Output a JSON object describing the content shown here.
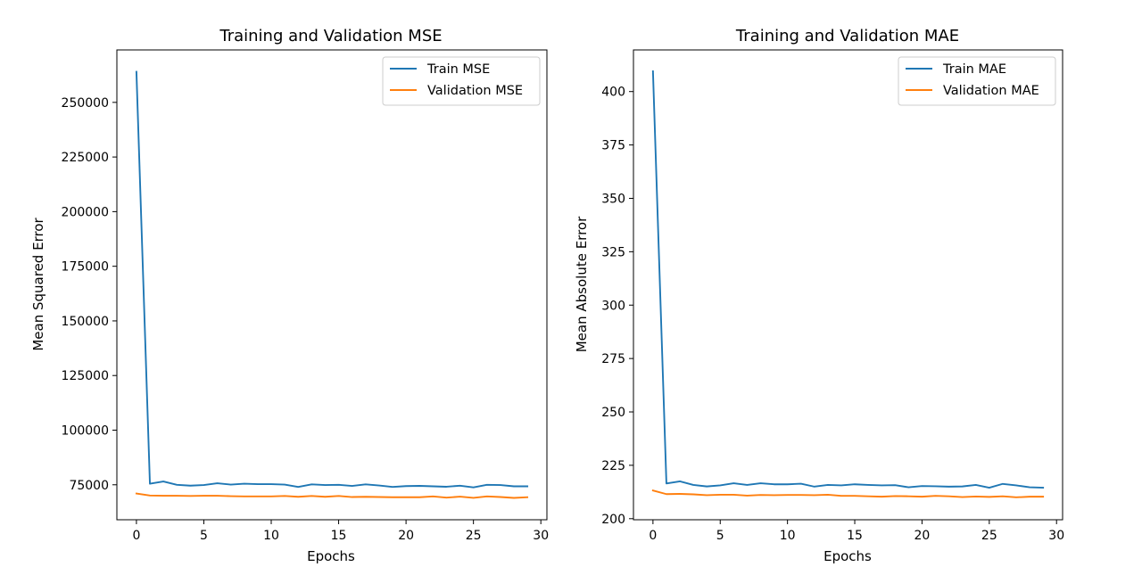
{
  "chart_data": [
    {
      "type": "line",
      "title": "Training and Validation MSE",
      "xlabel": "Epochs",
      "ylabel": "Mean Squared Error",
      "xlim": [
        -1.45,
        30.45
      ],
      "ylim": [
        59000,
        274000
      ],
      "xticks": [
        0,
        5,
        10,
        15,
        20,
        25,
        30
      ],
      "yticks": [
        75000,
        100000,
        125000,
        150000,
        175000,
        200000,
        225000,
        250000
      ],
      "ytick_labels": [
        "75000",
        "100000",
        "125000",
        "150000",
        "175000",
        "200000",
        "225000",
        "250000"
      ],
      "grid": false,
      "legend_position": "top-right",
      "x": [
        0,
        1,
        2,
        3,
        4,
        5,
        6,
        7,
        8,
        9,
        10,
        11,
        12,
        13,
        14,
        15,
        16,
        17,
        18,
        19,
        20,
        21,
        22,
        23,
        24,
        25,
        26,
        27,
        28,
        29
      ],
      "series": [
        {
          "name": "Train MSE",
          "color": "#1f77b4",
          "values": [
            264000,
            75500,
            76500,
            75000,
            74600,
            74900,
            75700,
            75100,
            75500,
            75300,
            75300,
            75100,
            74000,
            75200,
            74900,
            75000,
            74500,
            75200,
            74700,
            74000,
            74400,
            74500,
            74300,
            74100,
            74600,
            73800,
            75000,
            74900,
            74300,
            74300
          ]
        },
        {
          "name": "Validation MSE",
          "color": "#ff7f0e",
          "values": [
            71000,
            70100,
            70000,
            70000,
            69900,
            70000,
            70000,
            69800,
            69700,
            69700,
            69700,
            69900,
            69500,
            69900,
            69500,
            69900,
            69400,
            69500,
            69400,
            69300,
            69300,
            69300,
            69700,
            69100,
            69600,
            69000,
            69700,
            69400,
            69000,
            69300
          ]
        }
      ]
    },
    {
      "type": "line",
      "title": "Training and Validation MAE",
      "xlabel": "Epochs",
      "ylabel": "Mean Absolute Error",
      "xlim": [
        -1.45,
        30.45
      ],
      "ylim": [
        199.5,
        419.5
      ],
      "xticks": [
        0,
        5,
        10,
        15,
        20,
        25,
        30
      ],
      "yticks": [
        200,
        225,
        250,
        275,
        300,
        325,
        350,
        375,
        400
      ],
      "ytick_labels": [
        "200",
        "225",
        "250",
        "275",
        "300",
        "325",
        "350",
        "375",
        "400"
      ],
      "grid": false,
      "legend_position": "top-right",
      "x": [
        0,
        1,
        2,
        3,
        4,
        5,
        6,
        7,
        8,
        9,
        10,
        11,
        12,
        13,
        14,
        15,
        16,
        17,
        18,
        19,
        20,
        21,
        22,
        23,
        24,
        25,
        26,
        27,
        28,
        29
      ],
      "series": [
        {
          "name": "Train MAE",
          "color": "#1f77b4",
          "values": [
            409.5,
            216.5,
            217.5,
            215.8,
            215.1,
            215.6,
            216.6,
            215.8,
            216.6,
            216.1,
            216.1,
            216.4,
            215.0,
            215.8,
            215.6,
            216.1,
            215.8,
            215.6,
            215.7,
            214.7,
            215.3,
            215.2,
            215.0,
            215.1,
            215.8,
            214.5,
            216.3,
            215.6,
            214.7,
            214.5
          ]
        },
        {
          "name": "Validation MAE",
          "color": "#ff7f0e",
          "values": [
            213.2,
            211.5,
            211.6,
            211.4,
            211.0,
            211.2,
            211.2,
            210.8,
            211.1,
            211.0,
            211.1,
            211.1,
            211.0,
            211.2,
            210.7,
            210.7,
            210.5,
            210.3,
            210.6,
            210.5,
            210.3,
            210.7,
            210.5,
            210.1,
            210.4,
            210.2,
            210.5,
            210.0,
            210.3,
            210.3
          ]
        }
      ]
    }
  ]
}
